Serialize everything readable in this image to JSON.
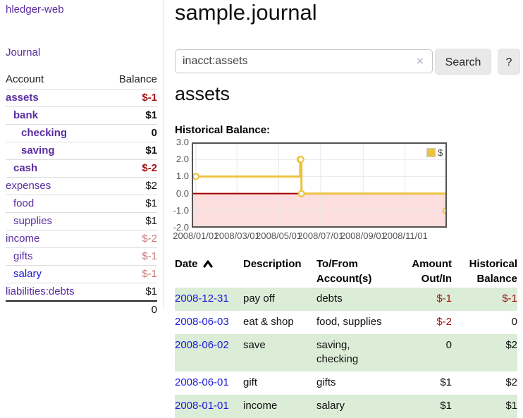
{
  "colors": {
    "accent_purple": "#5b2da0",
    "link_blue": "#1a1ad8",
    "negative_strong": "#a01414",
    "negative_soft": "#c77a7a",
    "row_green": "#dbecd7",
    "chart_line_gold": "#edc240",
    "chart_negative_fill": "#fcdede",
    "chart_zero_line": "#a40000",
    "chart_border": "#545454",
    "chart_grid": "#e6e6e6"
  },
  "brand": {
    "label": "hledger-web"
  },
  "nav": {
    "journal": "Journal"
  },
  "sidebar": {
    "headers": {
      "account": "Account",
      "balance": "Balance"
    },
    "accounts": [
      {
        "name": "assets",
        "depth": 1,
        "bold": true,
        "balance": "$-1",
        "neg": "strong"
      },
      {
        "name": "bank",
        "depth": 2,
        "bold": true,
        "balance": "$1",
        "neg": null
      },
      {
        "name": "checking",
        "depth": 3,
        "bold": true,
        "balance": "0",
        "neg": null
      },
      {
        "name": "saving",
        "depth": 3,
        "bold": true,
        "balance": "$1",
        "neg": null
      },
      {
        "name": "cash",
        "depth": 2,
        "bold": true,
        "balance": "$-2",
        "neg": "strong"
      },
      {
        "name": "expenses",
        "depth": 1,
        "bold": false,
        "balance": "$2",
        "neg": null
      },
      {
        "name": "food",
        "depth": 2,
        "bold": false,
        "balance": "$1",
        "neg": null
      },
      {
        "name": "supplies",
        "depth": 2,
        "bold": false,
        "balance": "$1",
        "neg": null
      },
      {
        "name": "income",
        "depth": 1,
        "bold": false,
        "balance": "$-2",
        "neg": "soft"
      },
      {
        "name": "gifts",
        "depth": 2,
        "bold": false,
        "balance": "$-1",
        "neg": "soft"
      },
      {
        "name": "salary",
        "depth": 2,
        "bold": false,
        "balance": "$-1",
        "neg": "soft",
        "link_color": "blue"
      },
      {
        "name": "liabilities:debts",
        "depth": 1,
        "bold": false,
        "balance": "$1",
        "neg": null
      }
    ],
    "total": "0"
  },
  "main": {
    "title": "sample.journal",
    "search": {
      "value": "inacct:assets",
      "clear": "×",
      "search_button": "Search",
      "help_button": "?"
    },
    "account_heading": "assets",
    "chart_title": "Historical Balance:"
  },
  "chart_data": {
    "type": "line",
    "step": true,
    "title": "Historical Balance",
    "series": [
      {
        "name": "$",
        "points": [
          [
            "2008-01-01",
            1
          ],
          [
            "2008-06-01",
            2
          ],
          [
            "2008-06-02",
            2
          ],
          [
            "2008-06-03",
            0
          ],
          [
            "2008-12-31",
            -1
          ]
        ]
      }
    ],
    "ylim": [
      -2.0,
      3.0
    ],
    "yticks": [
      "3.0",
      "2.0",
      "1.0",
      "0.0",
      "-1.0",
      "-2.0"
    ],
    "xtick_dates": [
      "2008-01-01",
      "2008-03-01",
      "2008-05-01",
      "2008-07-01",
      "2008-09-01",
      "2008-11-01"
    ],
    "xtick_labels": [
      "2008/01/01",
      "2008/03/01",
      "2008/05/01",
      "2008/07/01",
      "2008/09/01",
      "2008/11/01"
    ],
    "xdomain": [
      "2007-12-26",
      "2009-01-01"
    ],
    "grid": true,
    "legend": {
      "label": "$",
      "position": "top-right"
    },
    "negative_region": {
      "below": 0.0,
      "fill": "#fcdede"
    }
  },
  "register": {
    "headers": {
      "date": "Date",
      "description": "Description",
      "accounts_line1": "To/From",
      "accounts_line2": "Account(s)",
      "amount_line1": "Amount",
      "amount_line2": "Out/In",
      "balance_line1": "Historical",
      "balance_line2": "Balance"
    },
    "rows": [
      {
        "date": "2008-12-31",
        "description": "pay off",
        "accounts_lines": [
          "debts"
        ],
        "amount": "$-1",
        "amount_neg": true,
        "balance": "$-1",
        "balance_neg": true
      },
      {
        "date": "2008-06-03",
        "description": "eat & shop",
        "accounts_lines": [
          "food, supplies"
        ],
        "amount": "$-2",
        "amount_neg": true,
        "balance": "0",
        "balance_neg": false
      },
      {
        "date": "2008-06-02",
        "description": "save",
        "accounts_lines": [
          "saving,",
          "checking"
        ],
        "amount": "0",
        "amount_neg": false,
        "balance": "$2",
        "balance_neg": false
      },
      {
        "date": "2008-06-01",
        "description": "gift",
        "accounts_lines": [
          "gifts"
        ],
        "amount": "$1",
        "amount_neg": false,
        "balance": "$2",
        "balance_neg": false
      },
      {
        "date": "2008-01-01",
        "description": "income",
        "accounts_lines": [
          "salary"
        ],
        "amount": "$1",
        "amount_neg": false,
        "balance": "$1",
        "balance_neg": false
      }
    ]
  }
}
